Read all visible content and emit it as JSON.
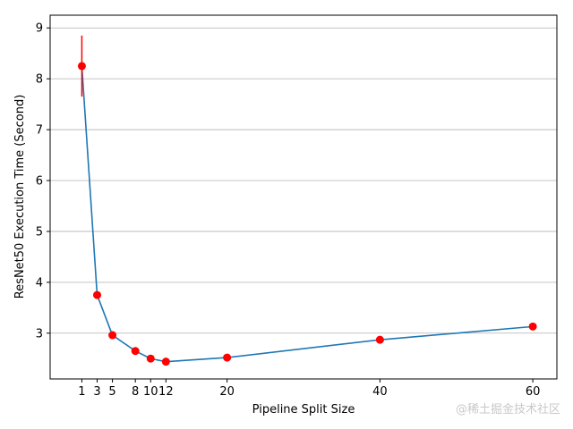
{
  "chart_data": {
    "type": "line",
    "xlabel": "Pipeline Split Size",
    "ylabel": "ResNet50 Execution Time (Second)",
    "x_ticks": [
      1,
      3,
      5,
      8,
      10,
      12,
      20,
      40,
      60
    ],
    "y_ticks": [
      3,
      4,
      5,
      6,
      7,
      8,
      9
    ],
    "xlim": [
      -3.15,
      63.15
    ],
    "ylim": [
      2.1,
      9.25
    ],
    "grid": "horizontal",
    "series": [
      {
        "x": [
          1,
          3,
          5,
          8,
          10,
          12,
          20,
          40,
          60
        ],
        "y": [
          8.25,
          3.75,
          2.96,
          2.65,
          2.5,
          2.44,
          2.52,
          2.87,
          3.13
        ],
        "yerr": [
          0.6,
          0,
          0,
          0,
          0,
          0,
          0,
          0,
          0
        ],
        "line_color": "#1f77b4",
        "marker_color": "#ff0000",
        "errorbar_color": "#ff0000"
      }
    ]
  },
  "watermark": "@稀土掘金技术社区"
}
